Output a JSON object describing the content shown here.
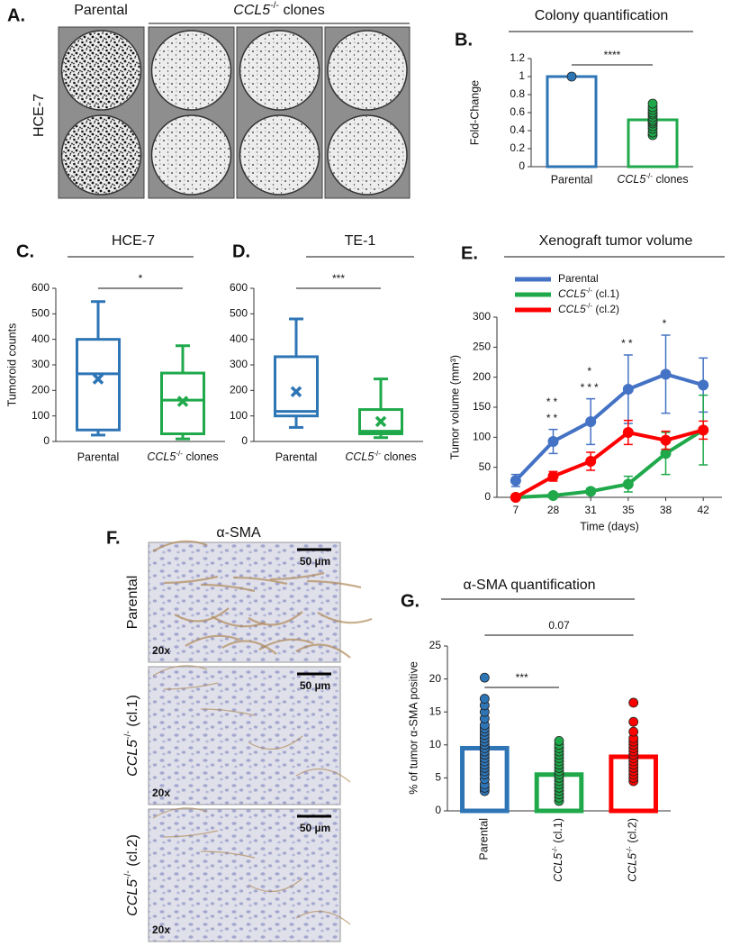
{
  "panel_a": {
    "label": "A.",
    "col_header_1": "Parental",
    "col_header_2": "CCL5-/- clones",
    "row_label": "HCE-7"
  },
  "panel_f": {
    "label": "F.",
    "title": "α-SMA",
    "rows": [
      "Parental",
      "CCL5-/- (cl.1)",
      "CCL5-/- (cl.2)"
    ],
    "scale_bar": "50 µm",
    "magnification": "20x"
  },
  "chart_data": [
    {
      "type": "bar",
      "panel_label": "B.",
      "title": "Colony quantification",
      "y_label": "Fold-Change",
      "categories": [
        "Parental",
        "CCL5-/- clones"
      ],
      "values": [
        1,
        0.52
      ],
      "colors": [
        "#2e75b6",
        "#1fa94b"
      ],
      "points": [
        [
          1
        ],
        [
          0.35,
          0.38,
          0.42,
          0.45,
          0.48,
          0.5,
          0.52,
          0.55,
          0.58,
          0.6,
          0.63,
          0.66,
          0.7
        ]
      ],
      "ylim": [
        0,
        1.2
      ],
      "yticks": [
        0,
        0.2,
        0.4,
        0.6,
        0.8,
        1,
        1.2
      ],
      "significance": [
        "****"
      ]
    },
    {
      "type": "box",
      "panel_label": "C.",
      "title": "HCE-7",
      "y_label": "Tumoroid counts",
      "categories": [
        "Parental",
        "CCL5-/- clones"
      ],
      "colors": [
        "#2e75b6",
        "#1fa94b"
      ],
      "boxes": [
        {
          "min": 25,
          "q1": 45,
          "median": 265,
          "q3": 400,
          "max": 548,
          "mean": 245
        },
        {
          "min": 10,
          "q1": 30,
          "median": 162,
          "q3": 268,
          "max": 375,
          "mean": 157
        }
      ],
      "ylim": [
        0,
        600
      ],
      "yticks": [
        0,
        100,
        200,
        300,
        400,
        500,
        600
      ],
      "significance": [
        "*"
      ]
    },
    {
      "type": "box",
      "panel_label": "D.",
      "title": "TE-1",
      "categories": [
        "Parental",
        "CCL5-/- clones"
      ],
      "colors": [
        "#2e75b6",
        "#1fa94b"
      ],
      "boxes": [
        {
          "min": 55,
          "q1": 100,
          "median": 118,
          "q3": 332,
          "max": 480,
          "mean": 195
        },
        {
          "min": 15,
          "q1": 30,
          "median": 40,
          "q3": 125,
          "max": 245,
          "mean": 78
        }
      ],
      "ylim": [
        0,
        600
      ],
      "yticks": [
        0,
        100,
        200,
        300,
        400,
        500,
        600
      ],
      "significance": [
        "***"
      ]
    },
    {
      "type": "line",
      "panel_label": "E.",
      "title": "Xenograft tumor volume",
      "y_label": "Tumor volume (mm³)",
      "x_label": "Time (days)",
      "categories": [
        "7",
        "28",
        "31",
        "35",
        "38",
        "42"
      ],
      "series": [
        {
          "name": "Parental",
          "color": "#4472c4",
          "values": [
            28,
            93,
            126,
            180,
            205,
            187
          ],
          "errors": [
            10,
            20,
            38,
            57,
            65,
            45
          ],
          "stars": [
            null,
            null,
            null,
            null,
            null,
            null
          ]
        },
        {
          "name": "CCL5-/- (cl.1)",
          "color": "#1fa94b",
          "values": [
            0,
            3,
            10,
            22,
            73,
            112
          ],
          "errors": [
            0,
            2,
            5,
            13,
            35,
            58
          ],
          "stars": [
            null,
            "**",
            "***",
            "**",
            "*",
            null
          ]
        },
        {
          "name": "CCL5-/- (cl.2)",
          "color": "#ff0000",
          "values": [
            0,
            35,
            60,
            108,
            95,
            112
          ],
          "errors": [
            0,
            8,
            15,
            20,
            15,
            15
          ],
          "stars": [
            null,
            "**",
            "*",
            null,
            null,
            null
          ]
        }
      ],
      "ylim": [
        0,
        300
      ],
      "yticks": [
        0,
        50,
        100,
        150,
        200,
        250,
        300
      ]
    },
    {
      "type": "bar",
      "panel_label": "G.",
      "title": "α-SMA quantification",
      "y_label": "% of tumor α-SMA positive",
      "categories": [
        "Parental",
        "CCL5-/- (cl.1)",
        "CCL5-/- (cl.2)"
      ],
      "values": [
        9.5,
        5.5,
        8.2
      ],
      "colors": [
        "#2e75b6",
        "#1fa94b",
        "#ff0000"
      ],
      "points": [
        [
          3,
          3.5,
          4,
          4.8,
          5.5,
          6,
          6.5,
          7,
          7.5,
          8,
          8.5,
          9,
          9.5,
          10,
          10.5,
          11,
          11.5,
          12,
          12.5,
          13,
          14,
          15,
          16,
          17,
          20.2
        ],
        [
          1.5,
          2,
          2.5,
          3,
          3.5,
          4,
          4.5,
          5,
          5.5,
          6,
          6.5,
          7,
          7.5,
          8,
          8.5,
          9,
          9.5,
          10,
          10.6
        ],
        [
          4.5,
          5,
          5.5,
          6,
          6.5,
          7,
          7.5,
          8,
          8.5,
          9,
          9.5,
          10,
          10.5,
          11,
          12,
          13.5,
          16.4
        ]
      ],
      "ylim": [
        0,
        25
      ],
      "yticks": [
        0,
        5,
        10,
        15,
        20,
        25
      ],
      "significance": [
        "***",
        "0.07"
      ]
    }
  ]
}
